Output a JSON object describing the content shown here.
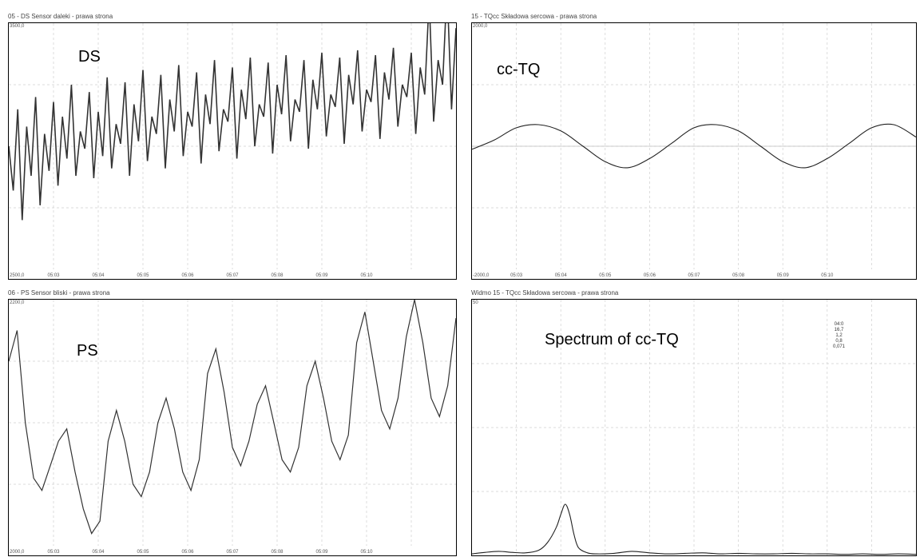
{
  "panels": {
    "ds": {
      "title": "05 - DS Sensor daleki - prawa strona",
      "label": "DS",
      "ytop": "3500,0",
      "ybot": "2500,0"
    },
    "cc": {
      "title": "15 - TQcc Składowa sercowa - prawa strona",
      "label": "cc-TQ",
      "ytop": "2000,0",
      "ybot": "-2000,0"
    },
    "ps": {
      "title": "06 - PS Sensor bliski - prawa strona",
      "label": "PS",
      "ytop": "2200,0",
      "ybot": "2000,0"
    },
    "sp": {
      "title": "Widmo 15 - TQcc Składowa sercowa - prawa strona",
      "label": "Spectrum of cc-TQ",
      "ytop": "50",
      "legend": [
        "04:0",
        "16,7",
        "1,2",
        "0,8",
        "0,071"
      ]
    }
  },
  "chart_data": [
    {
      "type": "line",
      "title": "05 - DS Sensor daleki - prawa strona",
      "annotation": "DS",
      "xticks": [
        "05:03",
        "05:04",
        "05:05",
        "05:06",
        "05:07",
        "05:08",
        "05:09",
        "05:10"
      ],
      "x_range": [
        0,
        100
      ],
      "ylim": [
        2500,
        3500
      ],
      "grid": true,
      "series": [
        {
          "values": [
            3000,
            2820,
            3150,
            2700,
            3080,
            2880,
            3200,
            2760,
            3050,
            2900,
            3180,
            2840,
            3120,
            2950,
            3250,
            2880,
            3060,
            2990,
            3220,
            2870,
            3140,
            2960,
            3280,
            2910,
            3090,
            3010,
            3260,
            2880,
            3170,
            3020,
            3310,
            2940,
            3120,
            3050,
            3290,
            2910,
            3190,
            3060,
            3330,
            2960,
            3140,
            3080,
            3300,
            2930,
            3210,
            3090,
            3350,
            2980,
            3150,
            3100,
            3320,
            2950,
            3230,
            3110,
            3360,
            3000,
            3170,
            3120,
            3340,
            2970,
            3250,
            3130,
            3370,
            3020,
            3190,
            3140,
            3350,
            2990,
            3270,
            3150,
            3380,
            3040,
            3210,
            3160,
            3360,
            3010,
            3290,
            3170,
            3390,
            3060,
            3230,
            3180,
            3370,
            3030,
            3300,
            3190,
            3400,
            3080,
            3250,
            3200,
            3380,
            3050,
            3320,
            3210,
            3600,
            3100,
            3350,
            3250,
            3650,
            3150,
            3480
          ]
        }
      ]
    },
    {
      "type": "line",
      "title": "15 - TQcc Składowa sercowa - prawa strona",
      "annotation": "cc-TQ",
      "xticks": [
        "05:03",
        "05:04",
        "05:05",
        "05:06",
        "05:07",
        "05:08",
        "05:09",
        "05:10"
      ],
      "ylim": [
        -2000,
        2000
      ],
      "grid": true,
      "series": [
        {
          "x": [
            0,
            5,
            10,
            15,
            20,
            25,
            30,
            35,
            40,
            45,
            50,
            55,
            60,
            65,
            70,
            75,
            80,
            85,
            90,
            95,
            100
          ],
          "values": [
            -50,
            100,
            300,
            350,
            250,
            0,
            -250,
            -350,
            -200,
            50,
            300,
            350,
            250,
            0,
            -250,
            -350,
            -200,
            50,
            300,
            350,
            150
          ]
        }
      ]
    },
    {
      "type": "line",
      "title": "06 - PS Sensor bliski - prawa strona",
      "annotation": "PS",
      "xticks": [
        "05:03",
        "05:04",
        "05:05",
        "05:06",
        "05:07",
        "05:08",
        "05:09",
        "05:10"
      ],
      "ylim": [
        2000,
        2200
      ],
      "grid": true,
      "series": [
        {
          "values": [
            2150,
            2175,
            2100,
            2055,
            2045,
            2065,
            2085,
            2095,
            2060,
            2030,
            2010,
            2020,
            2085,
            2110,
            2085,
            2050,
            2040,
            2060,
            2100,
            2120,
            2095,
            2060,
            2045,
            2070,
            2140,
            2160,
            2125,
            2080,
            2065,
            2085,
            2115,
            2130,
            2100,
            2070,
            2060,
            2080,
            2130,
            2150,
            2120,
            2085,
            2070,
            2090,
            2165,
            2190,
            2150,
            2110,
            2095,
            2120,
            2170,
            2200,
            2165,
            2120,
            2105,
            2130,
            2185
          ]
        }
      ]
    },
    {
      "type": "line",
      "title": "Widmo 15 - TQcc Składowa sercowa - prawa strona",
      "annotation": "Spectrum of cc-TQ",
      "ylim": [
        0,
        50
      ],
      "grid": true,
      "legend": [
        "04:0",
        "16,7",
        "1,2",
        "0,8",
        "0,071"
      ],
      "series": [
        {
          "x": [
            0,
            3,
            6,
            9,
            12,
            15,
            17,
            19,
            20,
            21,
            22,
            23,
            24,
            26,
            28,
            32,
            36,
            40,
            44,
            48,
            52,
            56,
            60,
            64,
            68,
            72,
            76,
            80,
            84,
            88,
            92,
            96,
            100
          ],
          "values": [
            0.3,
            0.6,
            0.8,
            0.6,
            0.5,
            1.0,
            2.5,
            5.5,
            8.0,
            10.0,
            8.0,
            4.0,
            1.5,
            0.5,
            0.3,
            0.4,
            0.8,
            0.5,
            0.3,
            0.4,
            0.5,
            0.3,
            0.4,
            0.3,
            0.3,
            0.4,
            0.3,
            0.3,
            0.2,
            0.3,
            0.2,
            0.3,
            0.2
          ]
        }
      ]
    }
  ]
}
